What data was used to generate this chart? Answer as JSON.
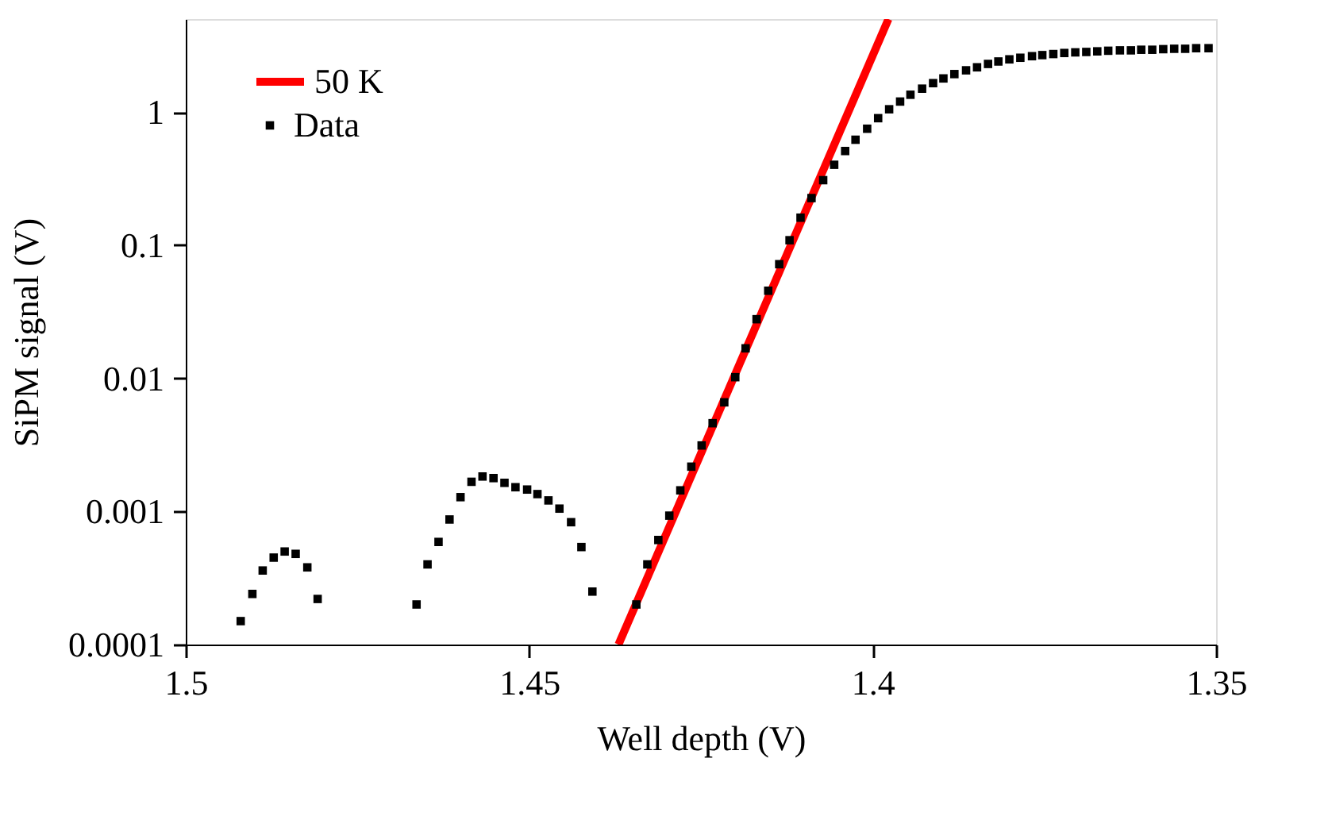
{
  "chart_data": {
    "type": "scatter",
    "xlabel": "Well depth (V)",
    "ylabel": "SiPM signal (V)",
    "log": "y",
    "grid": false,
    "legend": "top left",
    "xlim": [
      1.5,
      1.35
    ],
    "ylim": [
      0.0001,
      5
    ],
    "xticks": [
      1.5,
      1.45,
      1.4,
      1.35
    ],
    "yticks": [
      0.0001,
      0.001,
      0.01,
      0.1,
      1
    ],
    "series": [
      {
        "name": "50 K",
        "type": "line",
        "color": "#ff0000",
        "line_style": "solid",
        "marker": "none",
        "x": [
          1.437,
          1.3977
        ],
        "values": [
          0.0001,
          5
        ]
      },
      {
        "name": "Data",
        "type": "scatter",
        "color": "#000000",
        "marker": "square",
        "x": [
          1.492,
          1.4903,
          1.4888,
          1.4872,
          1.4856,
          1.484,
          1.4823,
          1.4808,
          1.4664,
          1.4648,
          1.4632,
          1.4616,
          1.46,
          1.4584,
          1.4568,
          1.4552,
          1.4536,
          1.452,
          1.4503,
          1.4488,
          1.4472,
          1.4456,
          1.4439,
          1.4424,
          1.4408,
          1.4344,
          1.4328,
          1.4312,
          1.4296,
          1.428,
          1.4264,
          1.4249,
          1.4233,
          1.4216,
          1.42,
          1.4185,
          1.4169,
          1.4152,
          1.4136,
          1.4121,
          1.4105,
          1.4089,
          1.4072,
          1.4056,
          1.404,
          1.4025,
          1.4008,
          1.3992,
          1.3976,
          1.396,
          1.3945,
          1.3928,
          1.3912,
          1.3897,
          1.3881,
          1.3864,
          1.3848,
          1.3832,
          1.3817,
          1.3801,
          1.3785,
          1.3768,
          1.3753,
          1.3737,
          1.3721,
          1.3705,
          1.3689,
          1.3673,
          1.3657,
          1.364,
          1.3624,
          1.3609,
          1.3593,
          1.3577,
          1.3561,
          1.3545,
          1.3529,
          1.3511
        ],
        "values": [
          0.00015,
          0.00024,
          0.00036,
          0.00045,
          0.0005,
          0.00048,
          0.00038,
          0.00022,
          0.0002,
          0.0004,
          0.00059,
          0.00087,
          0.00128,
          0.00167,
          0.00183,
          0.00178,
          0.00164,
          0.00152,
          0.00146,
          0.00135,
          0.00121,
          0.00105,
          0.00083,
          0.00054,
          0.00025,
          0.0002,
          0.0004,
          0.00061,
          0.00093,
          0.00144,
          0.00217,
          0.00313,
          0.0046,
          0.0066,
          0.0102,
          0.0168,
          0.0278,
          0.0455,
          0.072,
          0.109,
          0.161,
          0.226,
          0.308,
          0.402,
          0.51,
          0.62,
          0.75,
          0.9,
          1.05,
          1.2,
          1.35,
          1.5,
          1.65,
          1.79,
          1.93,
          2.06,
          2.17,
          2.3,
          2.4,
          2.49,
          2.56,
          2.63,
          2.68,
          2.73,
          2.78,
          2.81,
          2.83,
          2.86,
          2.89,
          2.91,
          2.91,
          2.94,
          2.94,
          2.97,
          2.99,
          2.99,
          3.02,
          3.02
        ]
      }
    ]
  }
}
